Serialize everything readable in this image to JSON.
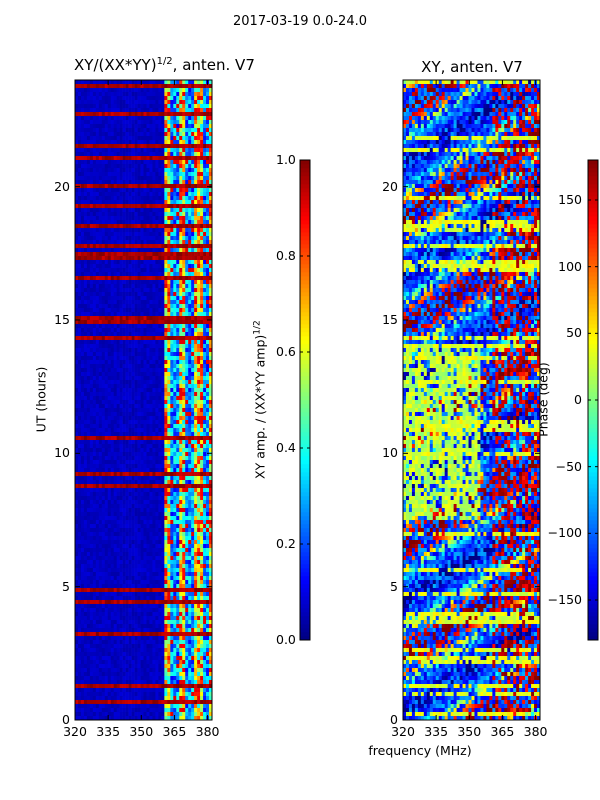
{
  "suptitle": "2017-03-19 0.0-24.0",
  "chart_data": [
    {
      "type": "heatmap",
      "title_base": "XY/(XX*YY)",
      "title_exp": "1/2",
      "title_suffix": ", anten. V7",
      "xlabel": "",
      "ylabel": "UT (hours)",
      "xlim": [
        320,
        382
      ],
      "ylim": [
        0,
        24
      ],
      "x_ticks": [
        "320",
        "335",
        "350",
        "365",
        "380"
      ],
      "x_tick_values": [
        320,
        335,
        350,
        365,
        380
      ],
      "y_ticks": [
        "0",
        "5",
        "10",
        "15",
        "20"
      ],
      "y_tick_values": [
        0,
        5,
        10,
        15,
        20
      ],
      "colorbar": {
        "label_base": "XY amp. / (XX*YY amp)",
        "label_exp": "1/2",
        "range": [
          0.0,
          1.0
        ],
        "ticks": [
          "0.0",
          "0.2",
          "0.4",
          "0.6",
          "0.8",
          "1.0"
        ],
        "tick_values": [
          0.0,
          0.2,
          0.4,
          0.6,
          0.8,
          1.0
        ]
      },
      "description_values": {
        "background_amp": 0.05,
        "flagged_rows_amp": 1.0,
        "high_band_start_mhz": 360,
        "high_band_amp_range": [
          0.3,
          1.0
        ]
      }
    },
    {
      "type": "heatmap",
      "title": "XY, anten. V7",
      "xlabel": "frequency (MHz)",
      "ylabel": "",
      "xlim": [
        320,
        382
      ],
      "ylim": [
        0,
        24
      ],
      "x_ticks": [
        "320",
        "335",
        "350",
        "365",
        "380"
      ],
      "x_tick_values": [
        320,
        335,
        350,
        365,
        380
      ],
      "y_ticks": [
        "0",
        "5",
        "10",
        "15",
        "20"
      ],
      "y_tick_values": [
        0,
        5,
        10,
        15,
        20
      ],
      "colorbar": {
        "label": "Phase (deg)",
        "range": [
          -180,
          180
        ],
        "ticks": [
          "−150",
          "−100",
          "−50",
          "0",
          "50",
          "100",
          "150"
        ],
        "tick_values": [
          -150,
          -100,
          -50,
          0,
          50,
          100,
          150
        ]
      }
    }
  ]
}
